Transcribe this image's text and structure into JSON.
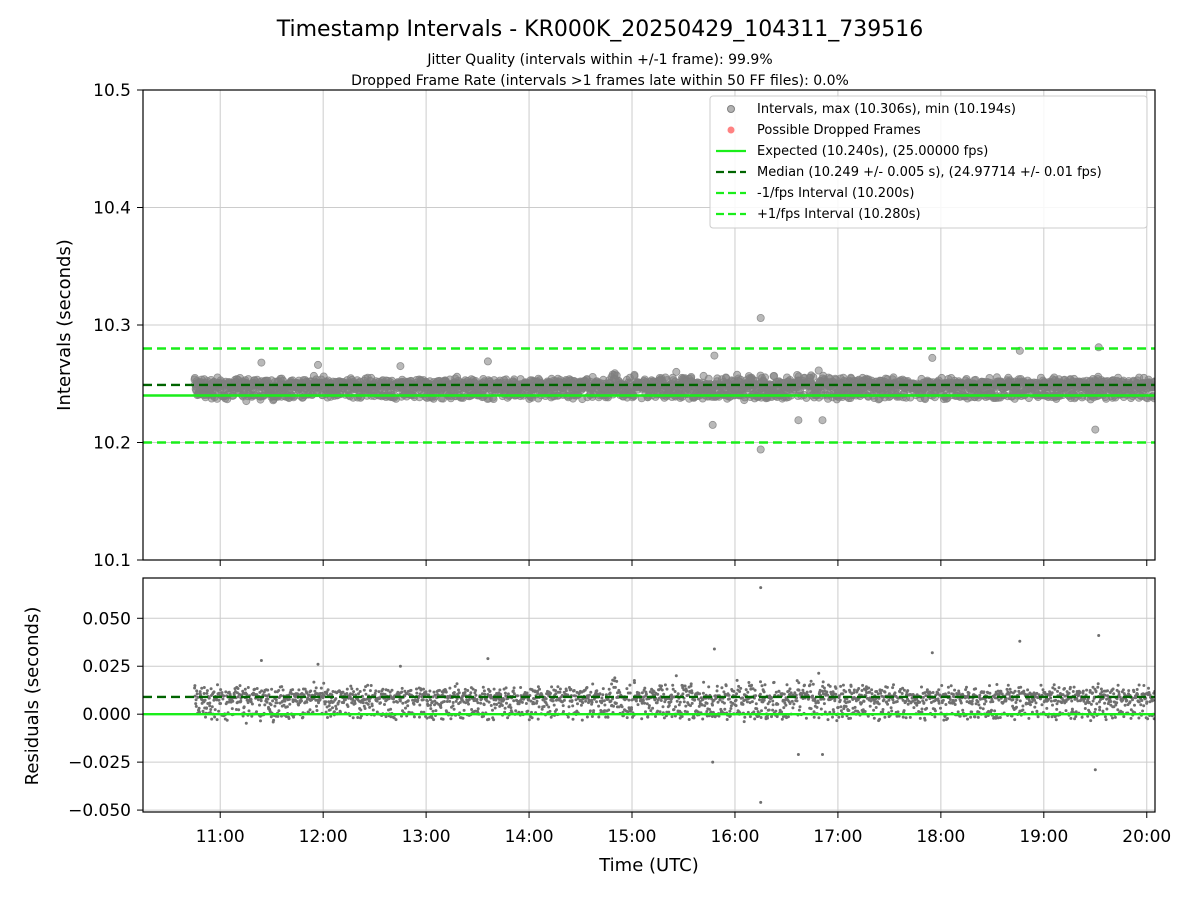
{
  "header": {
    "title": "Timestamp Intervals - KR000K_20250429_104311_739516",
    "subtitle1": "Jitter Quality (intervals within +/-1 frame): 99.9%",
    "subtitle2": "Dropped Frame Rate (intervals >1 frames late within 50 FF files): 0.0%"
  },
  "colors": {
    "points": "#808080",
    "dropped": "#ff4d4d",
    "expected": "#1aee1a",
    "median": "#006400",
    "bounds": "#1aee1a",
    "grid": "#cccccc",
    "residual_points": "#6f6f6f"
  },
  "chart_data": [
    {
      "id": "intervals",
      "type": "scatter",
      "ylabel": "Intervals (seconds)",
      "ylim": [
        10.1,
        10.5
      ],
      "yticks": [
        10.1,
        10.2,
        10.3,
        10.4,
        10.5
      ],
      "ytick_labels": [
        "10.1",
        "10.2",
        "10.3",
        "10.4",
        "10.5"
      ],
      "xlim_hours": [
        10.25,
        20.08
      ],
      "grid": true,
      "legend_position": "top-right",
      "lines": [
        {
          "name": "Expected (10.240s), (25.00000 fps)",
          "value": 10.24,
          "style": "solid"
        },
        {
          "name": "Median (10.249 +/- 0.005 s), (24.97714 +/- 0.01 fps)",
          "value": 10.249,
          "style": "dashed"
        },
        {
          "name": "-1/fps Interval (10.200s)",
          "value": 10.2,
          "style": "dashed"
        },
        {
          "name": "+1/fps Interval (10.280s)",
          "value": 10.28,
          "style": "dashed"
        }
      ],
      "series": [
        {
          "name": "Intervals, max (10.306s), min (10.194s)",
          "max": 10.306,
          "min": 10.194,
          "median": 10.249,
          "std": 0.005
        },
        {
          "name": "Possible Dropped Frames",
          "values": []
        }
      ],
      "notable_points": [
        {
          "x": "16:15",
          "y": 10.306
        },
        {
          "x": "16:15",
          "y": 10.194
        },
        {
          "x": "19:32",
          "y": 10.281
        },
        {
          "x": "18:46",
          "y": 10.278
        },
        {
          "x": "19:30",
          "y": 10.211
        },
        {
          "x": "15:48",
          "y": 10.274
        },
        {
          "x": "15:47",
          "y": 10.215
        },
        {
          "x": "16:51",
          "y": 10.219
        },
        {
          "x": "16:37",
          "y": 10.219
        },
        {
          "x": "17:55",
          "y": 10.272
        },
        {
          "x": "11:24",
          "y": 10.268
        },
        {
          "x": "13:36",
          "y": 10.269
        },
        {
          "x": "11:57",
          "y": 10.266
        },
        {
          "x": "12:45",
          "y": 10.265
        }
      ]
    },
    {
      "id": "residuals",
      "type": "scatter",
      "ylabel": "Residuals (seconds)",
      "xlabel": "Time (UTC)",
      "ylim": [
        -0.051,
        0.071
      ],
      "yticks": [
        -0.05,
        -0.025,
        0.0,
        0.025,
        0.05
      ],
      "ytick_labels": [
        "−0.050",
        "−0.025",
        "0.000",
        "0.025",
        "0.050"
      ],
      "xticks_hours": [
        11,
        12,
        13,
        14,
        15,
        16,
        17,
        18,
        19,
        20
      ],
      "xtick_labels": [
        "11:00",
        "12:00",
        "13:00",
        "14:00",
        "15:00",
        "16:00",
        "17:00",
        "18:00",
        "19:00",
        "20:00"
      ],
      "xlim_hours": [
        10.25,
        20.08
      ],
      "grid": true,
      "lines": [
        {
          "name": "Expected",
          "value": 0.0,
          "style": "solid"
        },
        {
          "name": "Median",
          "value": 0.009,
          "style": "dashed"
        }
      ],
      "series": [
        {
          "name": "Residuals",
          "max": 0.066,
          "min": -0.046,
          "median": 0.009
        }
      ]
    }
  ]
}
